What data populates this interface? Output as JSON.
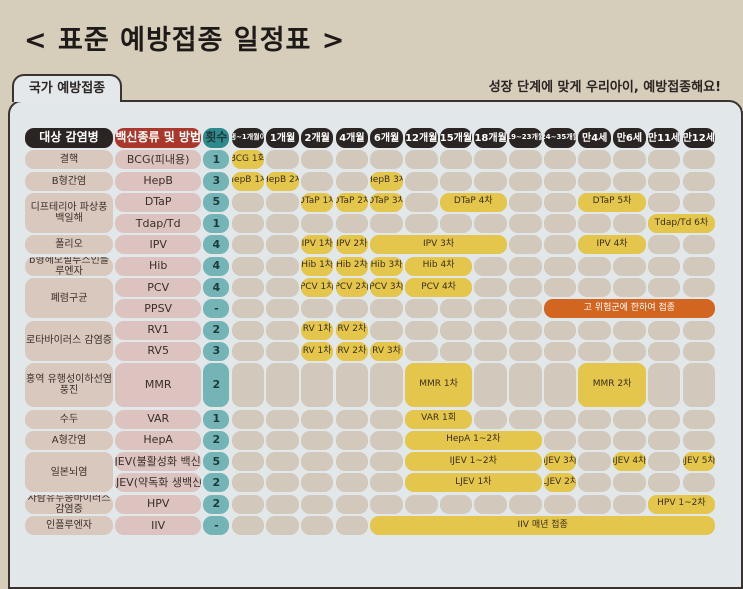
{
  "title": "< 표준 예방접종 일정표 >",
  "tab_label": "국가 예방접종",
  "slogan": "성장 단계에 맞게 우리아이, 예방접종해요!",
  "colors": {
    "bar": "#e5c64c",
    "special": "#d2651f",
    "count": "#74b4b6",
    "header": "#2a2422"
  },
  "headers": {
    "disease": "대상 감염병",
    "vaccine": "백신종류 및 방법",
    "count": "횟수",
    "times": [
      "출생~1개월이내",
      "1개월",
      "2개월",
      "4개월",
      "6개월",
      "12개월",
      "15개월",
      "18개월",
      "19~23개월",
      "24~35개월",
      "만4세",
      "만6세",
      "만11세",
      "만12세"
    ]
  },
  "diseases": [
    {
      "name": "결핵",
      "rows": 1
    },
    {
      "name": "B형간염",
      "rows": 1
    },
    {
      "name": "디프테리아 파상풍 백일해",
      "rows": 2
    },
    {
      "name": "폴리오",
      "rows": 1
    },
    {
      "name": "b형헤모필루스인플루엔자",
      "rows": 1
    },
    {
      "name": "폐렴구균",
      "rows": 2
    },
    {
      "name": "로타바이러스 감염증",
      "rows": 2
    },
    {
      "name": "홍역 유행성이하선염 풍진",
      "rows": 1
    },
    {
      "name": "수두",
      "rows": 1
    },
    {
      "name": "A형간염",
      "rows": 1
    },
    {
      "name": "일본뇌염",
      "rows": 2
    },
    {
      "name": "사람유두종바이러스 감염증",
      "rows": 1
    },
    {
      "name": "인플루엔자",
      "rows": 1
    }
  ],
  "rows": [
    {
      "vaccine": "BCG(피내용)",
      "count": "1",
      "doses": [
        {
          "from": 0,
          "to": 0,
          "label": "BCG 1회"
        }
      ]
    },
    {
      "vaccine": "HepB",
      "count": "3",
      "doses": [
        {
          "from": 0,
          "to": 0,
          "label": "HepB 1차"
        },
        {
          "from": 1,
          "to": 1,
          "label": "HepB 2차"
        },
        {
          "from": 4,
          "to": 4,
          "label": "HepB 3차"
        }
      ]
    },
    {
      "vaccine": "DTaP",
      "count": "5",
      "doses": [
        {
          "from": 2,
          "to": 2,
          "label": "DTaP 1차"
        },
        {
          "from": 3,
          "to": 3,
          "label": "DTaP 2차"
        },
        {
          "from": 4,
          "to": 4,
          "label": "DTaP 3차"
        },
        {
          "from": 6,
          "to": 7,
          "label": "DTaP 4차"
        },
        {
          "from": 10,
          "to": 11,
          "label": "DTaP 5차"
        }
      ]
    },
    {
      "vaccine": "Tdap/Td",
      "count": "1",
      "doses": [
        {
          "from": 12,
          "to": 13,
          "label": "Tdap/Td 6차"
        }
      ]
    },
    {
      "vaccine": "IPV",
      "count": "4",
      "doses": [
        {
          "from": 2,
          "to": 2,
          "label": "IPV 1차"
        },
        {
          "from": 3,
          "to": 3,
          "label": "IPV 2차"
        },
        {
          "from": 4,
          "to": 7,
          "label": "IPV 3차"
        },
        {
          "from": 10,
          "to": 11,
          "label": "IPV 4차"
        }
      ]
    },
    {
      "vaccine": "Hib",
      "count": "4",
      "doses": [
        {
          "from": 2,
          "to": 2,
          "label": "Hib 1차"
        },
        {
          "from": 3,
          "to": 3,
          "label": "Hib 2차"
        },
        {
          "from": 4,
          "to": 4,
          "label": "Hib 3차"
        },
        {
          "from": 5,
          "to": 6,
          "label": "Hib 4차"
        }
      ]
    },
    {
      "vaccine": "PCV",
      "count": "4",
      "doses": [
        {
          "from": 2,
          "to": 2,
          "label": "PCV 1차"
        },
        {
          "from": 3,
          "to": 3,
          "label": "PCV 2차"
        },
        {
          "from": 4,
          "to": 4,
          "label": "PCV 3차"
        },
        {
          "from": 5,
          "to": 6,
          "label": "PCV 4차"
        }
      ]
    },
    {
      "vaccine": "PPSV",
      "count": "-",
      "doses": [
        {
          "from": 9,
          "to": 13,
          "label": "고 위험군에 한하여 접종",
          "special": true
        }
      ]
    },
    {
      "vaccine": "RV1",
      "count": "2",
      "doses": [
        {
          "from": 2,
          "to": 2,
          "label": "RV 1차"
        },
        {
          "from": 3,
          "to": 3,
          "label": "RV 2차"
        }
      ]
    },
    {
      "vaccine": "RV5",
      "count": "3",
      "doses": [
        {
          "from": 2,
          "to": 2,
          "label": "RV 1차"
        },
        {
          "from": 3,
          "to": 3,
          "label": "RV 2차"
        },
        {
          "from": 4,
          "to": 4,
          "label": "RV 3차"
        }
      ]
    },
    {
      "vaccine": "MMR",
      "count": "2",
      "doses": [
        {
          "from": 5,
          "to": 6,
          "label": "MMR 1차"
        },
        {
          "from": 10,
          "to": 11,
          "label": "MMR 2차"
        }
      ]
    },
    {
      "vaccine": "VAR",
      "count": "1",
      "doses": [
        {
          "from": 5,
          "to": 6,
          "label": "VAR 1회"
        }
      ]
    },
    {
      "vaccine": "HepA",
      "count": "2",
      "doses": [
        {
          "from": 5,
          "to": 8,
          "label": "HepA 1~2차"
        }
      ]
    },
    {
      "vaccine": "IJEV(불활성화 백신)",
      "count": "5",
      "doses": [
        {
          "from": 5,
          "to": 8,
          "label": "IJEV 1~2차"
        },
        {
          "from": 9,
          "to": 9,
          "label": "IJEV 3차"
        },
        {
          "from": 11,
          "to": 11,
          "label": "IJEV 4차"
        },
        {
          "from": 13,
          "to": 13,
          "label": "IJEV 5차"
        }
      ]
    },
    {
      "vaccine": "LJEV(약독화 생백신)",
      "count": "2",
      "doses": [
        {
          "from": 5,
          "to": 8,
          "label": "LJEV 1차"
        },
        {
          "from": 9,
          "to": 9,
          "label": "LJEV 2차"
        }
      ]
    },
    {
      "vaccine": "HPV",
      "count": "2",
      "doses": [
        {
          "from": 12,
          "to": 13,
          "label": "HPV 1~2차"
        }
      ]
    },
    {
      "vaccine": "IIV",
      "count": "-",
      "doses": [
        {
          "from": 4,
          "to": 13,
          "label": "IIV 매년 접종"
        }
      ]
    }
  ]
}
